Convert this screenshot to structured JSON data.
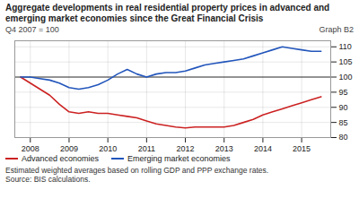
{
  "chart_data": {
    "type": "line",
    "title": "Aggregate developments in real residential property prices in advanced and emerging market economies since the Great Financial Crisis",
    "subtitle": "Q4 2007 = 100",
    "annotations": [
      "Graph B2",
      "Estimated weighted averages based on rolling GDP and PPP exchange rates.",
      "Source: BIS calculations."
    ],
    "x": [
      2007.75,
      2008.0,
      2008.25,
      2008.5,
      2008.75,
      2009.0,
      2009.25,
      2009.5,
      2009.75,
      2010.0,
      2010.25,
      2010.5,
      2010.75,
      2011.0,
      2011.25,
      2011.5,
      2011.75,
      2012.0,
      2012.25,
      2012.5,
      2012.75,
      2013.0,
      2013.25,
      2013.5,
      2013.75,
      2014.0,
      2014.25,
      2014.5,
      2014.75,
      2015.0,
      2015.25,
      2015.5
    ],
    "series": [
      {
        "name": "Advanced economies",
        "color": "#cc2222",
        "values": [
          100,
          98,
          96,
          94,
          91,
          88.5,
          88,
          88.5,
          88,
          88,
          87.5,
          87,
          86.5,
          85.5,
          84.5,
          84,
          83.5,
          83.2,
          83.5,
          83.5,
          83.5,
          83.5,
          84,
          85,
          86,
          87.5,
          88.5,
          89.5,
          90.5,
          91.5,
          92.5,
          93.5
        ]
      },
      {
        "name": "Emerging market economies",
        "color": "#2255bb",
        "values": [
          100,
          100,
          99.5,
          99,
          98,
          96.5,
          96,
          96.5,
          97.5,
          99,
          101,
          102.5,
          101,
          100,
          101,
          101.5,
          101.5,
          102,
          103,
          104,
          104.5,
          105,
          105.5,
          106,
          107,
          108,
          109,
          110,
          109.5,
          109,
          108.5,
          108.5
        ]
      }
    ],
    "reference_lines": [
      {
        "y": 100,
        "color": "#333333"
      }
    ],
    "xlim": [
      2007.6,
      2015.75
    ],
    "xticks": [
      2008,
      2009,
      2010,
      2011,
      2012,
      2013,
      2014,
      2015
    ],
    "ylim": [
      80,
      112
    ],
    "yticks": [
      80,
      85,
      90,
      95,
      100,
      105,
      110
    ],
    "grid": true,
    "legend": "bottom"
  }
}
